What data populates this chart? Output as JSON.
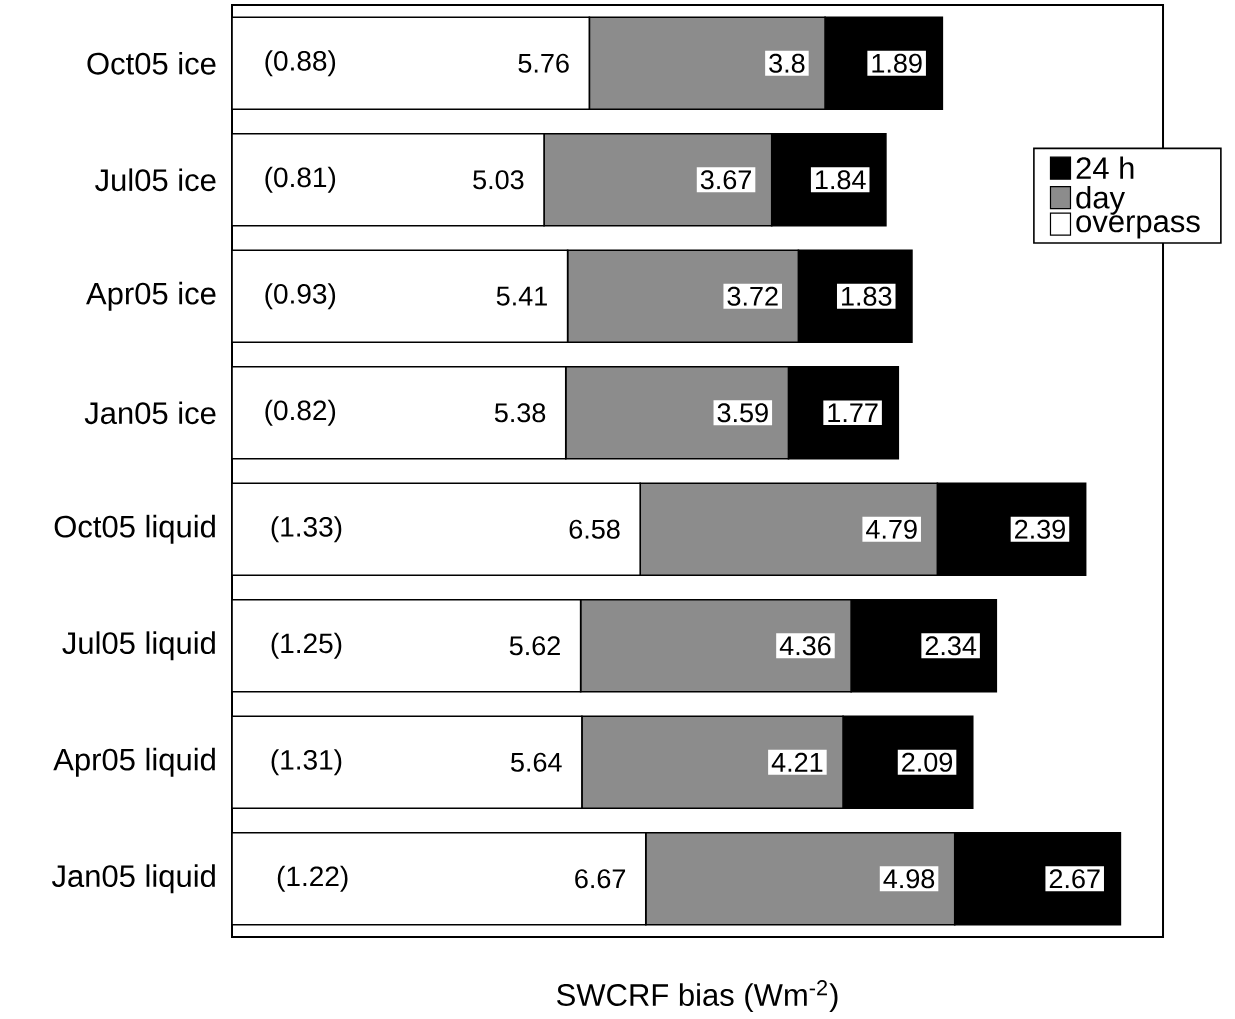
{
  "chart_data": {
    "type": "bar",
    "orientation": "horizontal",
    "stacked": true,
    "categories": [
      "Oct05 ice",
      "Jul05 ice",
      "Apr05 ice",
      "Jan05 ice",
      "Oct05 liquid",
      "Jul05 liquid",
      "Apr05 liquid",
      "Jan05 liquid"
    ],
    "series": [
      {
        "name": "overpass",
        "color": "#ffffff",
        "values": [
          5.76,
          5.03,
          5.41,
          5.38,
          6.58,
          5.62,
          5.64,
          6.67
        ]
      },
      {
        "name": "day",
        "color": "#8c8c8c",
        "values": [
          3.8,
          3.67,
          3.72,
          3.59,
          4.79,
          4.36,
          4.21,
          4.98
        ]
      },
      {
        "name": "24 h",
        "color": "#000000",
        "values": [
          1.89,
          1.84,
          1.83,
          1.77,
          2.39,
          2.34,
          2.09,
          2.67
        ]
      }
    ],
    "data_labels": true,
    "xlabel": "SWCRF bias (Wm$^{-2}$)",
    "tick_labels": "y",
    "legend": "top right",
    "grid": false,
    "annotations": [
      {
        "text": "(0.88)",
        "x": 1.1,
        "y": "Oct05 ice"
      },
      {
        "text": "(0.81)",
        "x": 1.1,
        "y": "Jul05 ice"
      },
      {
        "text": "(0.93)",
        "x": 1.1,
        "y": "Apr05 ice"
      },
      {
        "text": "(0.82)",
        "x": 1.1,
        "y": "Jan05 ice"
      },
      {
        "text": "(1.33)",
        "x": 1.2,
        "y": "Oct05 liquid"
      },
      {
        "text": "(1.25)",
        "x": 1.2,
        "y": "Jul05 liquid"
      },
      {
        "text": "(1.31)",
        "x": 1.2,
        "y": "Apr05 liquid"
      },
      {
        "text": "(1.22)",
        "x": 1.3,
        "y": "Jan05 liquid"
      }
    ]
  }
}
